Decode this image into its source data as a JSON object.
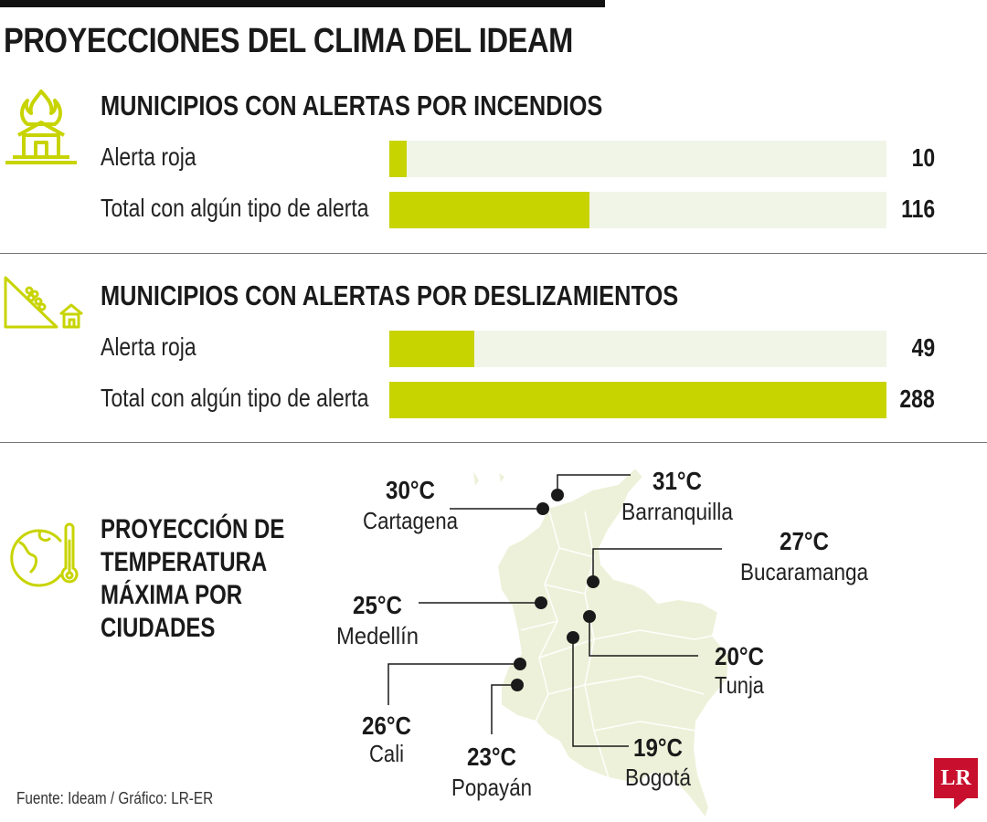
{
  "title": "PROYECCIONES DEL CLIMA DEL IDEAM",
  "colors": {
    "accent": "#c8d400",
    "track": "#f1f5e8",
    "map_fill": "#eef1d9",
    "logo": "#c8102e"
  },
  "chart_data": [
    {
      "type": "bar",
      "title": "MUNICIPIOS CON ALERTAS POR INCENDIOS",
      "icon": "house-fire-icon",
      "categories": [
        "Alerta roja",
        "Total con algún tipo de alerta"
      ],
      "values": [
        10,
        116
      ],
      "xlim": [
        0,
        288
      ],
      "labels": {
        "v0": "10",
        "v1": "116"
      }
    },
    {
      "type": "bar",
      "title": "MUNICIPIOS CON ALERTAS POR DESLIZAMIENTOS",
      "icon": "landslide-icon",
      "categories": [
        "Alerta roja",
        "Total con algún tipo de alerta"
      ],
      "values": [
        49,
        288
      ],
      "xlim": [
        0,
        288
      ],
      "labels": {
        "v0": "49",
        "v1": "288"
      }
    }
  ],
  "temperature": {
    "title_lines": [
      "PROYECCIÓN DE",
      "TEMPERATURA",
      "MÁXIMA POR",
      "CIUDADES"
    ],
    "icon": "globe-thermometer-icon",
    "cities": [
      {
        "name": "Cartagena",
        "temp": "30°C"
      },
      {
        "name": "Barranquilla",
        "temp": "31°C"
      },
      {
        "name": "Bucaramanga",
        "temp": "27°C"
      },
      {
        "name": "Medellín",
        "temp": "25°C"
      },
      {
        "name": "Tunja",
        "temp": "20°C"
      },
      {
        "name": "Cali",
        "temp": "26°C"
      },
      {
        "name": "Popayán",
        "temp": "23°C"
      },
      {
        "name": "Bogotá",
        "temp": "19°C"
      }
    ]
  },
  "source": "Fuente: Ideam / Gráfico: LR-ER",
  "logo_text": "LR"
}
